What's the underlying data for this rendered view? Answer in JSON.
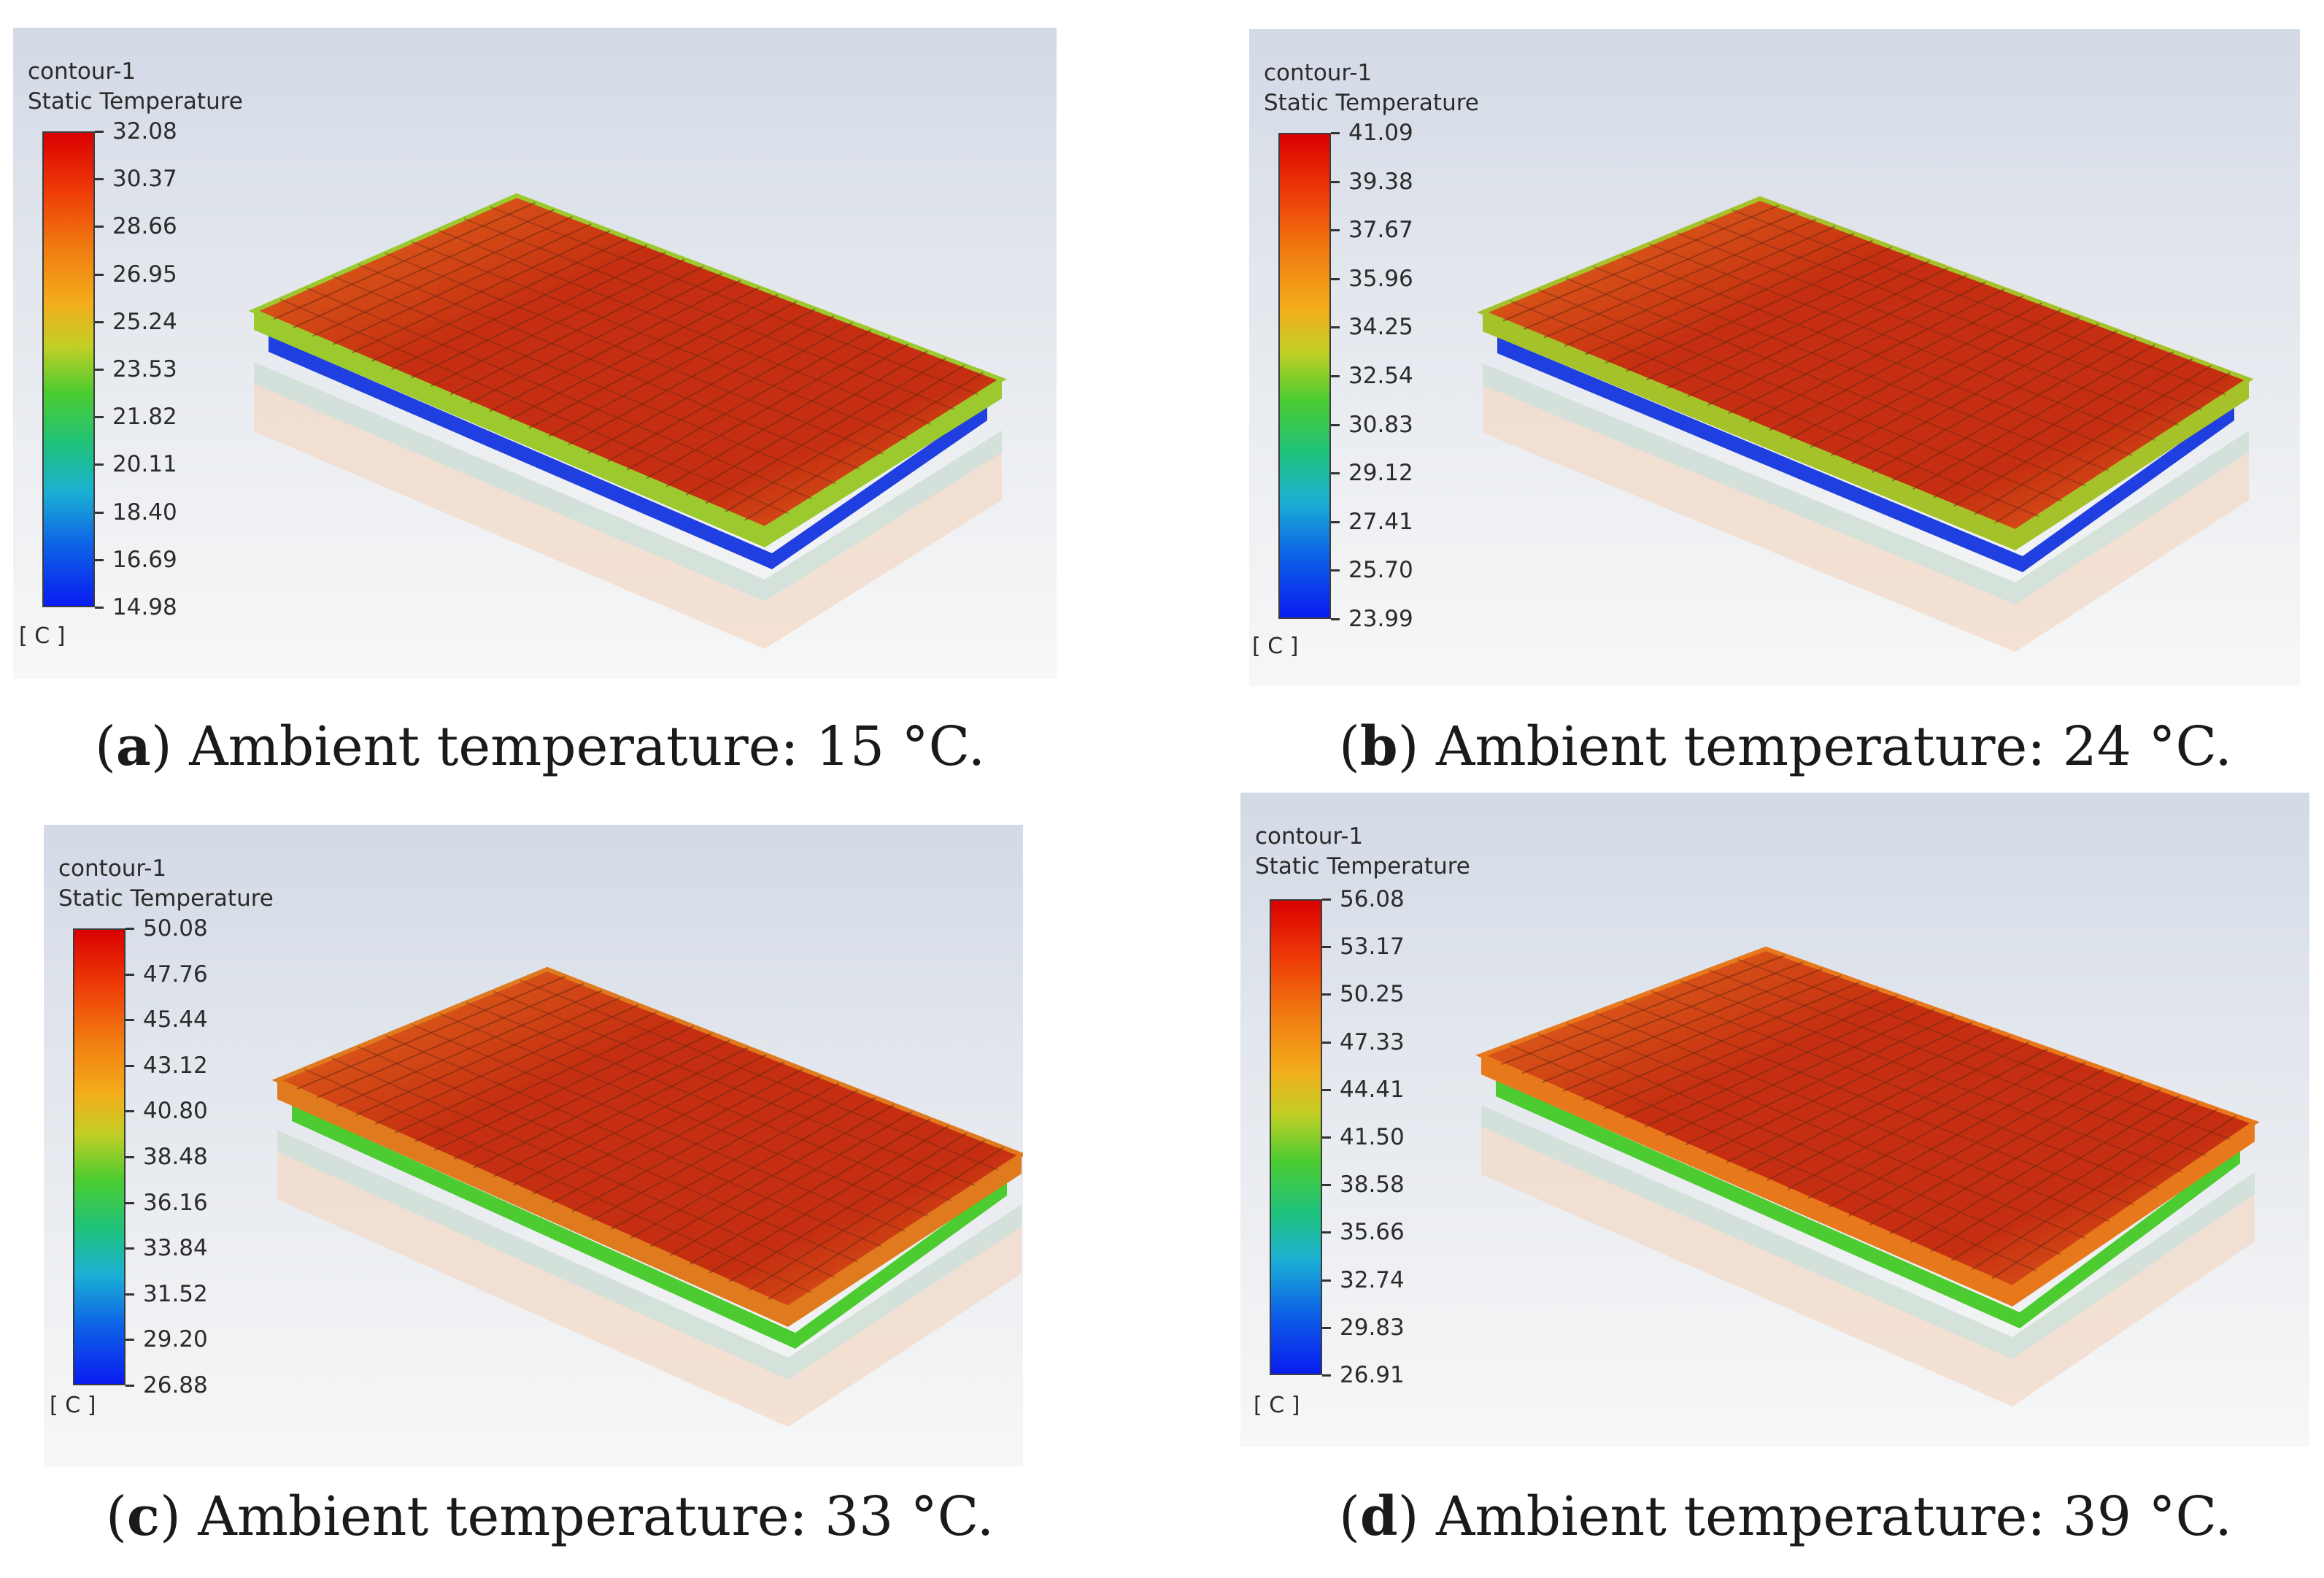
{
  "panels": [
    {
      "title": "contour-1",
      "quantity": "Static Temperature",
      "unit": "[ C ]",
      "scale_labels": [
        "32.08",
        "30.37",
        "28.66",
        "26.95",
        "25.24",
        "23.53",
        "21.82",
        "20.11",
        "18.40",
        "16.69",
        "14.98"
      ],
      "caption_letter": "a",
      "caption_text": "Ambient temperature: 15 °C."
    },
    {
      "title": "contour-1",
      "quantity": "Static Temperature",
      "unit": "[ C ]",
      "scale_labels": [
        "41.09",
        "39.38",
        "37.67",
        "35.96",
        "34.25",
        "32.54",
        "30.83",
        "29.12",
        "27.41",
        "25.70",
        "23.99"
      ],
      "caption_letter": "b",
      "caption_text": "Ambient temperature: 24 °C."
    },
    {
      "title": "contour-1",
      "quantity": "Static Temperature",
      "unit": "[ C ]",
      "scale_labels": [
        "50.08",
        "47.76",
        "45.44",
        "43.12",
        "40.80",
        "38.48",
        "36.16",
        "33.84",
        "31.52",
        "29.20",
        "26.88"
      ],
      "caption_letter": "c",
      "caption_text": "Ambient temperature: 33 °C."
    },
    {
      "title": "contour-1",
      "quantity": "Static Temperature",
      "unit": "[ C ]",
      "scale_labels": [
        "56.08",
        "53.17",
        "50.25",
        "47.33",
        "44.41",
        "41.50",
        "38.58",
        "35.66",
        "32.74",
        "29.83",
        "26.91"
      ],
      "caption_letter": "d",
      "caption_text": "Ambient temperature: 39 °C."
    }
  ],
  "colors": {
    "hot": "#c52e10",
    "warm": "#e8731f",
    "cool": "#1f3fe0",
    "mid": "#4ccc30"
  }
}
